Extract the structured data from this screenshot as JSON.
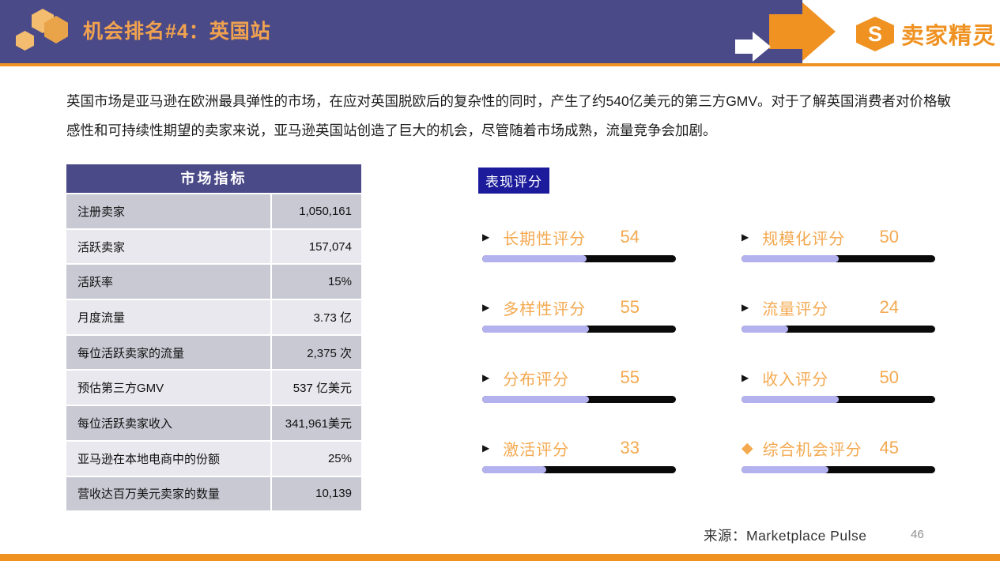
{
  "header": {
    "title": "机会排名#4：英国站",
    "logo_text": "卖家精灵",
    "logo_letter": "S"
  },
  "intro": "英国市场是亚马逊在欧洲最具弹性的市场，在应对英国脱欧后的复杂性的同时，产生了约540亿美元的第三方GMV。对于了解英国消费者对价格敏感性和可持续性期望的卖家来说，亚马逊英国站创造了巨大的机会，尽管随着市场成熟，流量竞争会加剧。",
  "metrics_table": {
    "title": "市场指标",
    "rows": [
      {
        "label": "注册卖家",
        "value": "1,050,161"
      },
      {
        "label": "活跃卖家",
        "value": "157,074"
      },
      {
        "label": "活跃率",
        "value": "15%"
      },
      {
        "label": "月度流量",
        "value": "3.73 亿"
      },
      {
        "label": "每位活跃卖家的流量",
        "value": "2,375 次"
      },
      {
        "label": "预估第三方GMV",
        "value": "537 亿美元"
      },
      {
        "label": "每位活跃卖家收入",
        "value": "341,961美元"
      },
      {
        "label": "亚马逊在本地电商中的份额",
        "value": "25%"
      },
      {
        "label": "营收达百万美元卖家的数量",
        "value": "10,139"
      }
    ]
  },
  "scores": {
    "section_label": "表现评分",
    "items": [
      {
        "label": "长期性评分",
        "value": 54,
        "bullet": "triangle"
      },
      {
        "label": "规模化评分",
        "value": 50,
        "bullet": "triangle"
      },
      {
        "label": "多样性评分",
        "value": 55,
        "bullet": "triangle"
      },
      {
        "label": "流量评分",
        "value": 24,
        "bullet": "triangle"
      },
      {
        "label": "分布评分",
        "value": 55,
        "bullet": "triangle"
      },
      {
        "label": "收入评分",
        "value": 50,
        "bullet": "triangle"
      },
      {
        "label": "激活评分",
        "value": 33,
        "bullet": "triangle"
      },
      {
        "label": "综合机会评分",
        "value": 45,
        "bullet": "diamond"
      }
    ]
  },
  "icons": {
    "triangle": "▶",
    "diamond": "◆"
  },
  "footer": {
    "source": "来源：Marketplace Pulse",
    "page": "46"
  },
  "colors": {
    "banner_purple": "#4B4A88",
    "accent_orange": "#EF9222",
    "title_orange": "#F0A24F",
    "score_orange": "#F4A950",
    "badge_navy": "#1B1B9C",
    "bar_fill_lavender": "#B4B2EE",
    "bar_track_black": "#0A0A0A",
    "row_dark": "#C9C9D4",
    "row_light": "#E8E8EE"
  }
}
